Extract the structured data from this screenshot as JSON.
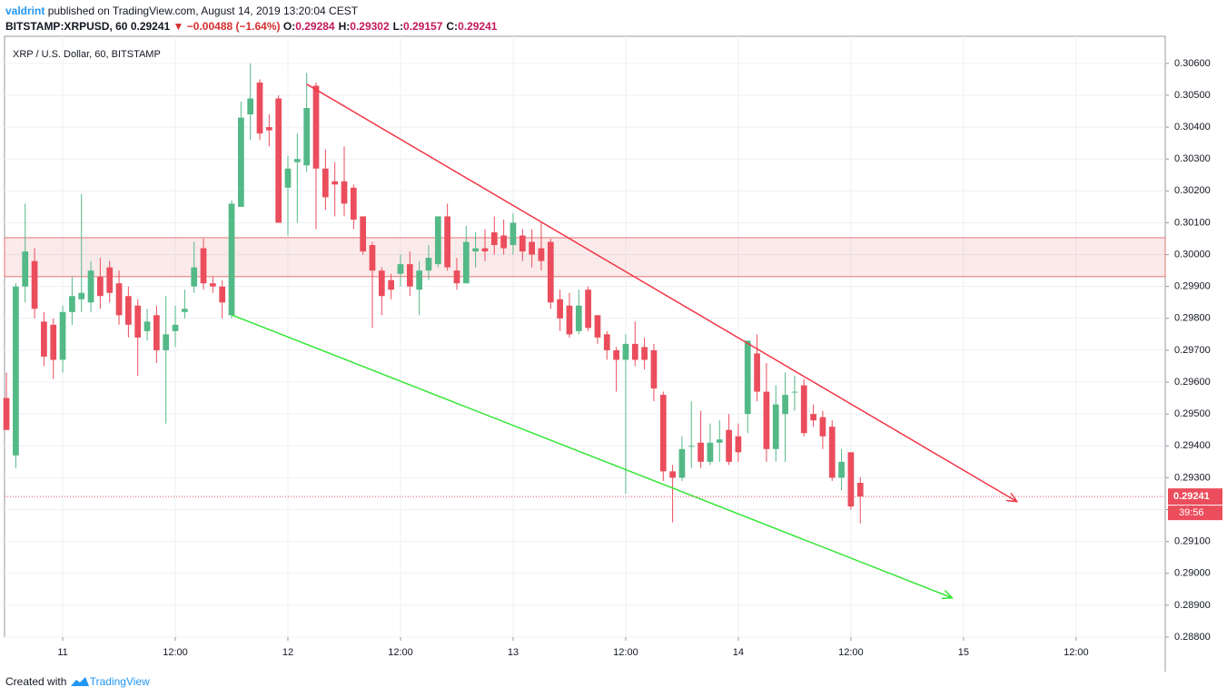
{
  "header": {
    "author": "valdrint",
    "published": "published on TradingView.com, August 14, 2019 13:20:04 CEST",
    "symbol": "BITSTAMP:XRPUSD, 60",
    "last": "0.29241",
    "direction": "▼",
    "change": "−0.00488 (−1.64%)",
    "ohlc": [
      {
        "label": "O:",
        "value": "0.29284"
      },
      {
        "label": "H:",
        "value": "0.29302"
      },
      {
        "label": "L:",
        "value": "0.29157"
      },
      {
        "label": "C:",
        "value": "0.29241"
      }
    ]
  },
  "chart_data": {
    "type": "candlestick",
    "title": "XRP / U.S. Dollar, 60, BITSTAMP",
    "up_color": "#53b987",
    "down_color": "#eb4d5c",
    "grid": true,
    "x": [
      -6,
      -5,
      -4,
      -3,
      -2,
      -1,
      0,
      1,
      2,
      3,
      4,
      5,
      6,
      7,
      8,
      9,
      10,
      11,
      12,
      13,
      14,
      15,
      16,
      17,
      18,
      19,
      20,
      21,
      22,
      23,
      24,
      25,
      26,
      27,
      28,
      29,
      30,
      31,
      32,
      33,
      34,
      35,
      36,
      37,
      38,
      39,
      40,
      41,
      42,
      43,
      44,
      45,
      46,
      47,
      48,
      49,
      50,
      51,
      52,
      53,
      54,
      55,
      56,
      57,
      58,
      59,
      60,
      61,
      62,
      63,
      64,
      65,
      66,
      67,
      68,
      69,
      70,
      71,
      72,
      73,
      74,
      75,
      76,
      77,
      78,
      79,
      80,
      81,
      82,
      83,
      84,
      85
    ],
    "open": [
      0.2955,
      0.2937,
      0.299,
      0.2998,
      0.2979,
      0.2978,
      0.2967,
      0.2982,
      0.2986,
      0.2985,
      0.2993,
      0.2996,
      0.2991,
      0.2987,
      0.2984,
      0.2976,
      0.2981,
      0.297,
      0.2976,
      0.2982,
      0.299,
      0.3002,
      0.2991,
      0.299,
      0.2981,
      0.3015,
      0.3044,
      0.3054,
      0.304,
      0.3049,
      0.3021,
      0.3029,
      0.3028,
      0.3053,
      0.3027,
      0.3023,
      0.3023,
      0.3021,
      0.3012,
      0.3003,
      0.2995,
      0.2992,
      0.2994,
      0.2997,
      0.2989,
      0.2995,
      0.2997,
      0.3012,
      0.2995,
      0.2991,
      0.3001,
      0.3002,
      0.3007,
      0.3006,
      0.3003,
      0.3006,
      0.3004,
      0.3002,
      0.3004,
      0.2986,
      0.2984,
      0.2976,
      0.2989,
      0.2981,
      0.2975,
      0.297,
      0.2967,
      0.2972,
      0.2971,
      0.297,
      0.2956,
      0.2932,
      0.293,
      0.294,
      0.2941,
      0.2935,
      0.2941,
      0.2945,
      0.2943,
      0.295,
      0.2969,
      0.2957,
      0.2939,
      0.295,
      0.2957,
      0.2959,
      0.295,
      0.2949,
      0.2946,
      0.293,
      0.2938,
      0.29284
    ],
    "high": [
      0.2963,
      0.2991,
      0.3016,
      0.3002,
      0.2982,
      0.298,
      0.2984,
      0.2993,
      0.3019,
      0.2998,
      0.2999,
      0.2998,
      0.2995,
      0.299,
      0.2986,
      0.2983,
      0.2984,
      0.2987,
      0.2984,
      0.2989,
      0.3004,
      0.3005,
      0.2993,
      0.2992,
      0.3017,
      0.3048,
      0.306,
      0.3055,
      0.3044,
      0.305,
      0.3031,
      0.3038,
      0.3057,
      0.3054,
      0.3033,
      0.3029,
      0.3034,
      0.3022,
      0.3012,
      0.3004,
      0.2996,
      0.2994,
      0.3,
      0.3001,
      0.2998,
      0.3003,
      0.3012,
      0.3016,
      0.2999,
      0.3009,
      0.3007,
      0.3008,
      0.3012,
      0.3011,
      0.3013,
      0.3008,
      0.3008,
      0.301,
      0.3005,
      0.2989,
      0.2988,
      0.2989,
      0.299,
      0.2981,
      0.2976,
      0.2971,
      0.2975,
      0.2979,
      0.2974,
      0.2972,
      0.2957,
      0.2934,
      0.2943,
      0.2954,
      0.2951,
      0.2947,
      0.2948,
      0.295,
      0.2947,
      0.2973,
      0.2975,
      0.2966,
      0.2959,
      0.2963,
      0.2962,
      0.2961,
      0.2953,
      0.2951,
      0.2948,
      0.2939,
      0.2938,
      0.29302
    ],
    "low": [
      0.2945,
      0.2933,
      0.2985,
      0.298,
      0.2965,
      0.2961,
      0.2963,
      0.2978,
      0.2982,
      0.2982,
      0.2983,
      0.2985,
      0.2978,
      0.2974,
      0.2962,
      0.2973,
      0.2966,
      0.2947,
      0.2971,
      0.298,
      0.2988,
      0.2989,
      0.2988,
      0.298,
      0.298,
      0.3015,
      0.3036,
      0.3036,
      0.3034,
      0.301,
      0.3006,
      0.301,
      0.3026,
      0.3008,
      0.3014,
      0.3012,
      0.3012,
      0.3008,
      0.3,
      0.2977,
      0.2981,
      0.2986,
      0.299,
      0.2987,
      0.2981,
      0.2992,
      0.2996,
      0.2995,
      0.2989,
      0.2991,
      0.2996,
      0.2998,
      0.3,
      0.3,
      0.3,
      0.2998,
      0.2996,
      0.2995,
      0.2983,
      0.2976,
      0.2974,
      0.2975,
      0.2976,
      0.2972,
      0.2967,
      0.2957,
      0.2925,
      0.2965,
      0.2964,
      0.2954,
      0.2929,
      0.2916,
      0.2929,
      0.2933,
      0.2933,
      0.2934,
      0.2935,
      0.2934,
      0.2935,
      0.2944,
      0.2954,
      0.2935,
      0.2935,
      0.2935,
      0.2951,
      0.2943,
      0.2946,
      0.2939,
      0.2929,
      0.2926,
      0.292,
      0.29157
    ],
    "close": [
      0.2945,
      0.299,
      0.3001,
      0.2983,
      0.2968,
      0.2967,
      0.2982,
      0.2987,
      0.2988,
      0.2995,
      0.2987,
      0.2988,
      0.2981,
      0.2978,
      0.2974,
      0.2979,
      0.297,
      0.2975,
      0.2978,
      0.2983,
      0.2996,
      0.2991,
      0.299,
      0.2985,
      0.3016,
      0.3043,
      0.3049,
      0.3038,
      0.3039,
      0.301,
      0.3027,
      0.303,
      0.3046,
      0.3027,
      0.3018,
      0.3022,
      0.3016,
      0.3011,
      0.3001,
      0.2995,
      0.2987,
      0.2989,
      0.2997,
      0.299,
      0.2995,
      0.2999,
      0.3012,
      0.2996,
      0.2991,
      0.3004,
      0.3002,
      0.3001,
      0.3003,
      0.3002,
      0.301,
      0.3001,
      0.3,
      0.2998,
      0.2985,
      0.298,
      0.2975,
      0.2984,
      0.2977,
      0.2974,
      0.297,
      0.2967,
      0.2972,
      0.2967,
      0.2967,
      0.2958,
      0.2932,
      0.293,
      0.2939,
      0.294,
      0.2935,
      0.2941,
      0.2942,
      0.2935,
      0.2938,
      0.2973,
      0.2957,
      0.2939,
      0.2953,
      0.2956,
      0.2957,
      0.2944,
      0.2948,
      0.2943,
      0.293,
      0.2935,
      0.2921,
      0.29241
    ],
    "xlim": [
      -6.2,
      117.5
    ],
    "xticks": [
      {
        "value": 0,
        "label": "11"
      },
      {
        "value": 12,
        "label": "12:00"
      },
      {
        "value": 24,
        "label": "12"
      },
      {
        "value": 36,
        "label": "12:00"
      },
      {
        "value": 48,
        "label": "13"
      },
      {
        "value": 60,
        "label": "12:00"
      },
      {
        "value": 72,
        "label": "14"
      },
      {
        "value": 84,
        "label": "12:00"
      },
      {
        "value": 96,
        "label": "15"
      },
      {
        "value": 108,
        "label": "12:00"
      }
    ],
    "ylim": [
      0.288,
      0.30685
    ],
    "yticks": [
      {
        "value": 0.288,
        "label": "0.28800"
      },
      {
        "value": 0.289,
        "label": "0.28900"
      },
      {
        "value": 0.29,
        "label": "0.29000"
      },
      {
        "value": 0.291,
        "label": "0.29100"
      },
      {
        "value": 0.292,
        "label": "0.29200"
      },
      {
        "value": 0.293,
        "label": "0.29300"
      },
      {
        "value": 0.294,
        "label": "0.29400"
      },
      {
        "value": 0.295,
        "label": "0.29500"
      },
      {
        "value": 0.296,
        "label": "0.29600"
      },
      {
        "value": 0.297,
        "label": "0.29700"
      },
      {
        "value": 0.298,
        "label": "0.29800"
      },
      {
        "value": 0.299,
        "label": "0.29900"
      },
      {
        "value": 0.3,
        "label": "0.30000"
      },
      {
        "value": 0.301,
        "label": "0.30100"
      },
      {
        "value": 0.302,
        "label": "0.30200"
      },
      {
        "value": 0.303,
        "label": "0.30300"
      },
      {
        "value": 0.304,
        "label": "0.30400"
      },
      {
        "value": 0.305,
        "label": "0.30500"
      },
      {
        "value": 0.306,
        "label": "0.30600"
      }
    ],
    "zone": {
      "from": 0.29931,
      "to": 0.30053,
      "color": "#e57373"
    },
    "trendlines": [
      {
        "color": "#f23645",
        "from": [
          26,
          0.30535
        ],
        "to": [
          101.7,
          0.29225
        ]
      },
      {
        "color": "#33e633",
        "from": [
          18,
          0.29811
        ],
        "to": [
          94.8,
          0.28923
        ]
      }
    ],
    "countdown": "39:56"
  },
  "footer": {
    "created": "Created with",
    "brand": "TradingView"
  }
}
